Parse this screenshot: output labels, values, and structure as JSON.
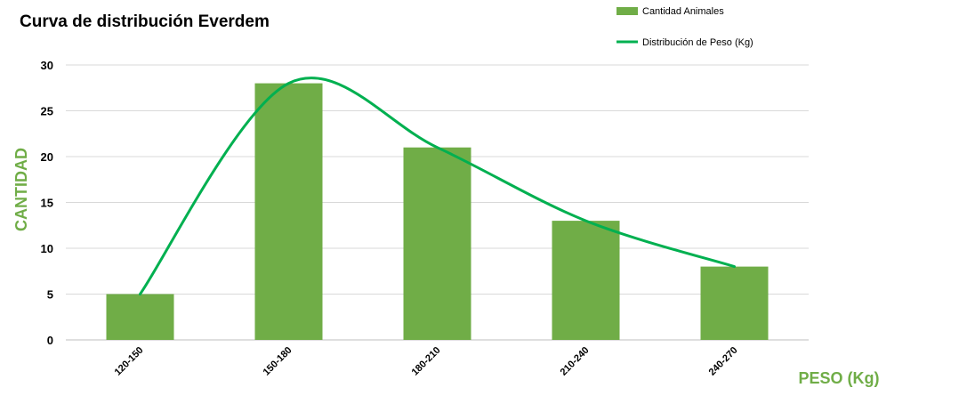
{
  "chart_data": {
    "type": "bar",
    "title": "Curva de distribución Everdem",
    "xlabel": "PESO (Kg)",
    "ylabel": "CANTIDAD",
    "categories": [
      "120-150",
      "150-180",
      "180-210",
      "210-240",
      "240-270"
    ],
    "ylim": [
      0,
      30
    ],
    "yticks": [
      0,
      5,
      10,
      15,
      20,
      25,
      30
    ],
    "grid": true,
    "legend_position": "top-right",
    "series": [
      {
        "name": "Cantidad Animales",
        "type": "bar",
        "color": "#70AD47",
        "values": [
          5,
          28,
          21,
          13,
          8
        ]
      },
      {
        "name": "Distribución de Peso (Kg)",
        "type": "line",
        "smooth": true,
        "color": "#00B050",
        "values": [
          5,
          28,
          21,
          13,
          8
        ]
      }
    ],
    "axis_label_color": "#70AD47"
  }
}
